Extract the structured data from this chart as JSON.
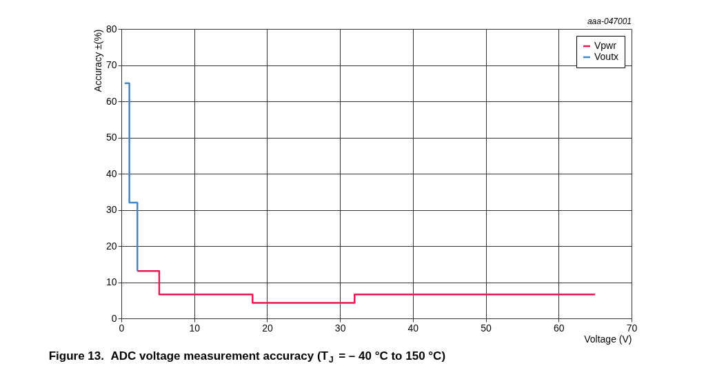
{
  "chart_data": {
    "type": "step",
    "title": "Figure 13.  ADC voltage measurement accuracy (T$_{J}$ = – 40 °C to 150 °C)",
    "xlabel": "Voltage (V)",
    "ylabel": "Accuracy ±(%)",
    "series": [
      {
        "name": "Vpwr",
        "color": "#e8174f",
        "x": [
          2.2,
          5.2,
          18,
          32,
          65
        ],
        "values": [
          13.1,
          6.6,
          4.3,
          6.6,
          6.6
        ]
      },
      {
        "name": "Voutx",
        "color": "#3f86c8",
        "x": [
          0.45,
          1.1,
          2.2
        ],
        "values": [
          65,
          32,
          13.1
        ]
      }
    ],
    "xlim": [
      0,
      70
    ],
    "xticks": [
      0,
      10,
      20,
      30,
      40,
      50,
      60,
      70
    ],
    "ylim": [
      0,
      80
    ],
    "yticks": [
      0,
      10,
      20,
      30,
      40,
      50,
      60,
      70,
      80
    ],
    "grid": true,
    "legend": "top right",
    "line_style": "solid",
    "marker": "none",
    "annotations": [
      "aaa-047001"
    ]
  }
}
